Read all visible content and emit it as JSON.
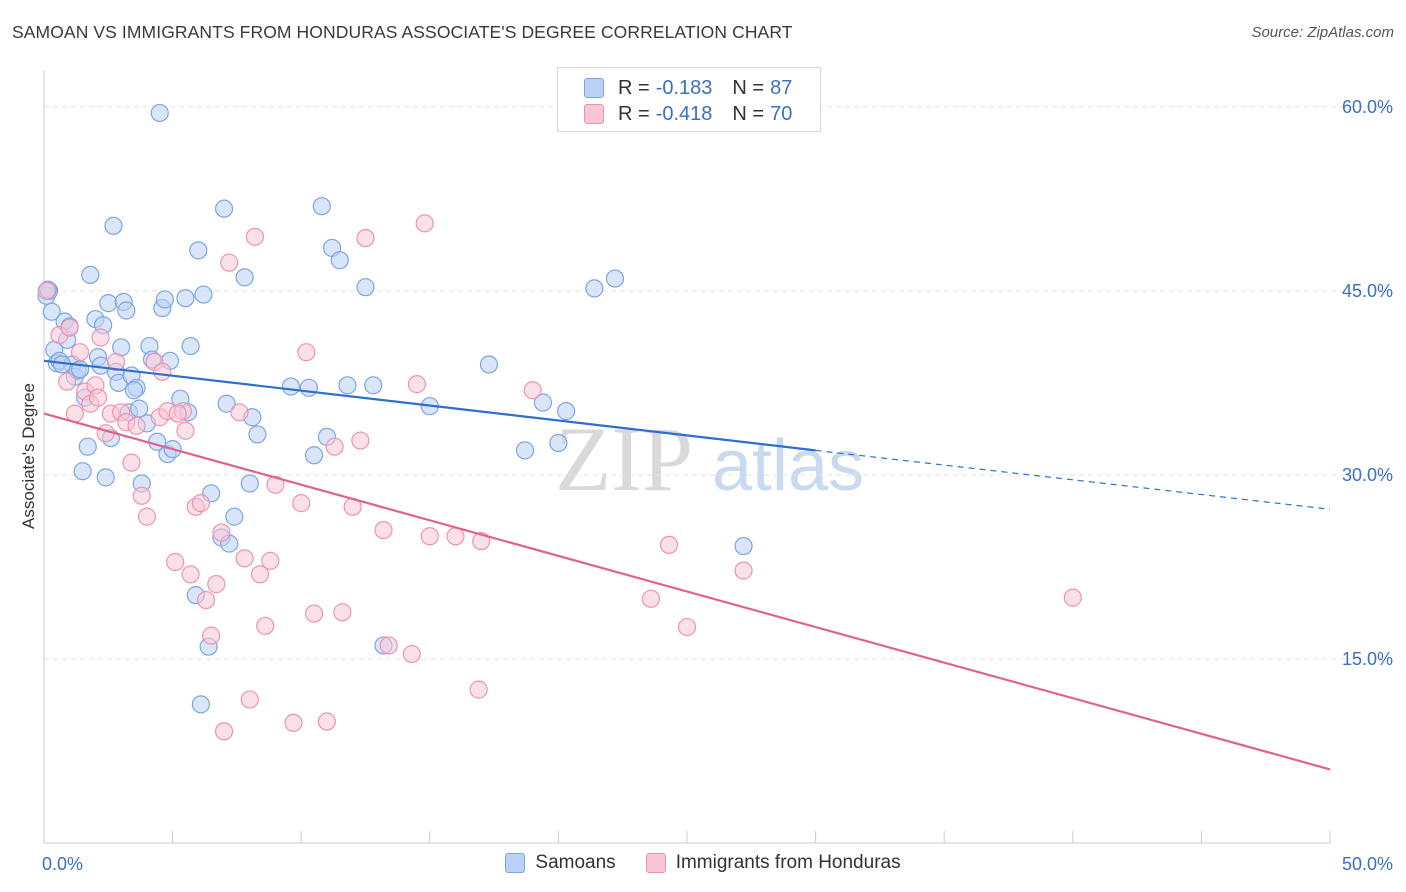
{
  "title": "SAMOAN VS IMMIGRANTS FROM HONDURAS ASSOCIATE'S DEGREE CORRELATION CHART",
  "source": "Source: ZipAtlas.com",
  "watermark": {
    "zip": "ZIP",
    "atlas": "atlas"
  },
  "legend": {
    "rows": [
      {
        "r_label": "R =",
        "r_value": "-0.183",
        "n_label": "N =",
        "n_value": "87"
      },
      {
        "r_label": "R =",
        "r_value": "-0.418",
        "n_label": "N =",
        "n_value": "70"
      }
    ]
  },
  "bottom_legend": {
    "series1": "Samoans",
    "series2": "Immigrants from Honduras"
  },
  "colors": {
    "blue_fill": "#b9d2f5",
    "blue_stroke": "#7ea6df",
    "blue_line": "#2f6fcc",
    "pink_fill": "#f9c6d6",
    "pink_stroke": "#ec93b2",
    "pink_line": "#e0628f",
    "tick_text": "#3a6fc4",
    "grid": "#e4e4e4"
  },
  "chart_data": {
    "type": "scatter",
    "title": "SAMOAN VS IMMIGRANTS FROM HONDURAS ASSOCIATE'S DEGREE CORRELATION CHART",
    "xlabel": "",
    "ylabel": "Associate's Degree",
    "xlim": [
      0,
      50
    ],
    "ylim": [
      0,
      63
    ],
    "x_tick_labels": [
      "0.0%",
      "50.0%"
    ],
    "y_ticks": [
      15,
      30,
      45,
      60
    ],
    "y_tick_labels": [
      "15.0%",
      "30.0%",
      "45.0%",
      "60.0%"
    ],
    "grid": true,
    "legend_position": "top-center",
    "series": [
      {
        "name": "Samoans",
        "r": -0.183,
        "n": 87,
        "trend": {
          "x0": 0,
          "y0": 39.3,
          "x1": 30,
          "y1": 32.0,
          "dash_x1": 50,
          "dash_y1": 27.2
        },
        "points": [
          [
            0.1,
            44.6
          ],
          [
            0.2,
            45.0
          ],
          [
            0.3,
            43.3
          ],
          [
            0.4,
            40.2
          ],
          [
            0.5,
            39.1
          ],
          [
            0.6,
            39.3
          ],
          [
            0.8,
            42.5
          ],
          [
            0.9,
            41.0
          ],
          [
            1.0,
            42.1
          ],
          [
            1.1,
            39.0
          ],
          [
            1.2,
            38.0
          ],
          [
            1.3,
            38.5
          ],
          [
            1.5,
            30.3
          ],
          [
            1.6,
            36.3
          ],
          [
            1.7,
            32.3
          ],
          [
            1.8,
            46.3
          ],
          [
            2.0,
            42.7
          ],
          [
            2.1,
            39.6
          ],
          [
            2.3,
            42.2
          ],
          [
            2.4,
            29.8
          ],
          [
            2.5,
            44.0
          ],
          [
            2.6,
            33.0
          ],
          [
            2.7,
            50.3
          ],
          [
            2.8,
            38.4
          ],
          [
            2.9,
            37.5
          ],
          [
            3.0,
            40.4
          ],
          [
            3.1,
            44.1
          ],
          [
            3.2,
            43.4
          ],
          [
            3.3,
            35.1
          ],
          [
            3.4,
            38.1
          ],
          [
            3.6,
            37.1
          ],
          [
            3.7,
            35.4
          ],
          [
            3.8,
            29.3
          ],
          [
            4.0,
            34.2
          ],
          [
            4.1,
            40.5
          ],
          [
            4.2,
            39.4
          ],
          [
            4.4,
            32.7
          ],
          [
            4.5,
            59.5
          ],
          [
            4.6,
            43.6
          ],
          [
            4.7,
            44.3
          ],
          [
            4.8,
            31.7
          ],
          [
            5.0,
            32.1
          ],
          [
            5.3,
            36.2
          ],
          [
            5.5,
            44.4
          ],
          [
            5.6,
            35.1
          ],
          [
            5.7,
            40.5
          ],
          [
            5.9,
            20.2
          ],
          [
            6.0,
            48.3
          ],
          [
            6.1,
            11.3
          ],
          [
            6.2,
            44.7
          ],
          [
            6.4,
            16.0
          ],
          [
            6.5,
            28.5
          ],
          [
            6.9,
            24.9
          ],
          [
            7.0,
            51.7
          ],
          [
            7.1,
            35.8
          ],
          [
            7.2,
            24.4
          ],
          [
            7.4,
            26.6
          ],
          [
            7.8,
            46.1
          ],
          [
            8.0,
            29.3
          ],
          [
            8.1,
            34.7
          ],
          [
            8.3,
            33.3
          ],
          [
            9.6,
            37.2
          ],
          [
            10.3,
            37.1
          ],
          [
            10.5,
            31.6
          ],
          [
            10.8,
            51.9
          ],
          [
            11.0,
            33.1
          ],
          [
            11.2,
            48.5
          ],
          [
            11.5,
            47.5
          ],
          [
            11.8,
            37.3
          ],
          [
            12.5,
            45.3
          ],
          [
            12.8,
            37.3
          ],
          [
            13.2,
            16.1
          ],
          [
            15.0,
            35.6
          ],
          [
            17.3,
            39.0
          ],
          [
            18.7,
            32.0
          ],
          [
            19.4,
            35.9
          ],
          [
            20.0,
            32.6
          ],
          [
            20.3,
            35.2
          ],
          [
            21.4,
            45.2
          ],
          [
            22.2,
            46.0
          ],
          [
            27.2,
            24.2
          ],
          [
            0.15,
            45.1
          ],
          [
            0.7,
            39.0
          ],
          [
            1.4,
            38.6
          ],
          [
            2.2,
            38.9
          ],
          [
            3.5,
            36.9
          ],
          [
            4.9,
            39.3
          ]
        ]
      },
      {
        "name": "Immigrants from Honduras",
        "r": -0.418,
        "n": 70,
        "trend": {
          "x0": 0,
          "y0": 35.0,
          "x1": 50,
          "y1": 6.0
        },
        "points": [
          [
            0.1,
            45.0
          ],
          [
            0.6,
            41.4
          ],
          [
            0.9,
            37.6
          ],
          [
            1.2,
            35.0
          ],
          [
            1.4,
            40.0
          ],
          [
            1.6,
            36.8
          ],
          [
            1.8,
            35.8
          ],
          [
            2.0,
            37.3
          ],
          [
            2.2,
            41.2
          ],
          [
            2.4,
            33.4
          ],
          [
            2.6,
            35.0
          ],
          [
            2.8,
            39.2
          ],
          [
            3.0,
            35.1
          ],
          [
            3.2,
            34.3
          ],
          [
            3.4,
            31.0
          ],
          [
            3.6,
            34.0
          ],
          [
            3.8,
            28.3
          ],
          [
            4.0,
            26.6
          ],
          [
            4.3,
            39.2
          ],
          [
            4.5,
            34.7
          ],
          [
            4.6,
            38.4
          ],
          [
            4.8,
            35.2
          ],
          [
            5.1,
            22.9
          ],
          [
            5.4,
            35.2
          ],
          [
            5.5,
            33.6
          ],
          [
            5.7,
            21.9
          ],
          [
            5.9,
            27.4
          ],
          [
            6.1,
            27.7
          ],
          [
            6.3,
            19.8
          ],
          [
            6.5,
            16.9
          ],
          [
            6.7,
            21.1
          ],
          [
            6.9,
            25.3
          ],
          [
            7.0,
            9.1
          ],
          [
            7.2,
            47.3
          ],
          [
            7.6,
            35.1
          ],
          [
            7.8,
            23.2
          ],
          [
            8.0,
            11.7
          ],
          [
            8.2,
            49.4
          ],
          [
            8.4,
            21.9
          ],
          [
            8.6,
            17.7
          ],
          [
            8.8,
            23.0
          ],
          [
            9.0,
            29.2
          ],
          [
            9.7,
            9.8
          ],
          [
            10.0,
            27.7
          ],
          [
            10.2,
            40.0
          ],
          [
            10.5,
            18.7
          ],
          [
            11.0,
            9.9
          ],
          [
            11.3,
            32.3
          ],
          [
            11.6,
            18.8
          ],
          [
            12.0,
            27.4
          ],
          [
            12.3,
            32.8
          ],
          [
            12.5,
            49.3
          ],
          [
            13.2,
            25.5
          ],
          [
            13.4,
            16.1
          ],
          [
            14.3,
            15.4
          ],
          [
            14.5,
            37.4
          ],
          [
            14.8,
            50.5
          ],
          [
            15.0,
            25.0
          ],
          [
            16.0,
            25.0
          ],
          [
            16.9,
            12.5
          ],
          [
            17.0,
            24.6
          ],
          [
            19.0,
            36.9
          ],
          [
            23.6,
            19.9
          ],
          [
            24.3,
            24.3
          ],
          [
            25.0,
            17.6
          ],
          [
            27.2,
            22.2
          ],
          [
            40.0,
            20.0
          ],
          [
            1.0,
            42.0
          ],
          [
            2.1,
            36.3
          ],
          [
            5.2,
            35.0
          ]
        ]
      }
    ]
  }
}
